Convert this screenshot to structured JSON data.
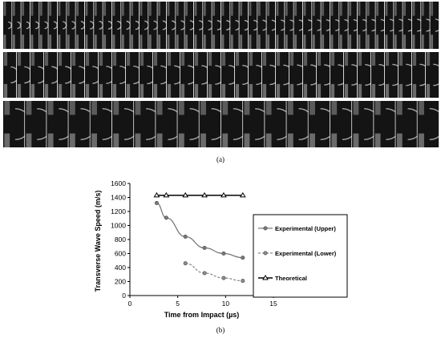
{
  "figure": {
    "caption_a": "(a)",
    "caption_b": "(b)",
    "image_sequence": {
      "description_icon": "high-speed-photo-sequence-image",
      "rows": 3,
      "frames_per_row": [
        48,
        32,
        20
      ]
    }
  },
  "chart_data": {
    "type": "line",
    "title": "",
    "xlabel": "Time from Impact (µs)",
    "ylabel": "Transverse Wave Speed (m/s)",
    "xlim": [
      0,
      15
    ],
    "ylim": [
      0,
      1600
    ],
    "xticks": [
      "0",
      "5",
      "10",
      "15"
    ],
    "yticks": [
      "0",
      "200",
      "400",
      "600",
      "800",
      "1000",
      "1200",
      "1400",
      "1600"
    ],
    "grid": false,
    "legend_position": "right",
    "series": [
      {
        "name": "Experimental (Upper)",
        "color": "#7a7a7a",
        "line_style": "solid",
        "marker": "circle",
        "x": [
          2.8,
          3.8,
          5.8,
          7.8,
          9.8,
          11.8
        ],
        "y": [
          1320,
          1110,
          840,
          680,
          600,
          540
        ]
      },
      {
        "name": "Experimental (Lower)",
        "color": "#8c8c8c",
        "line_style": "dashed",
        "marker": "circle",
        "x": [
          5.8,
          7.8,
          9.8,
          11.8
        ],
        "y": [
          460,
          320,
          250,
          210
        ]
      },
      {
        "name": "Theoretical",
        "color": "#000000",
        "line_style": "solid",
        "marker": "triangle",
        "x": [
          2.8,
          3.8,
          5.8,
          7.8,
          9.8,
          11.8
        ],
        "y": [
          1430,
          1430,
          1430,
          1430,
          1430,
          1430
        ]
      }
    ]
  }
}
